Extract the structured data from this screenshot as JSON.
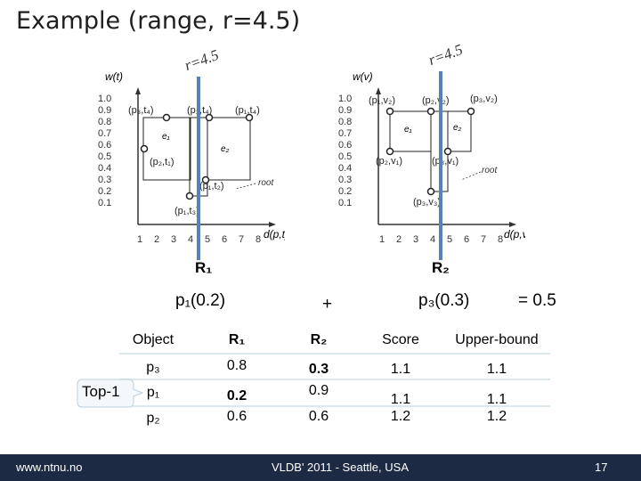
{
  "slide": {
    "title": "Example (range, r=4.5)",
    "r_label": "r=4.5",
    "plus": "+",
    "equals": "= 0.5",
    "term1": "p₁(0.2)",
    "term2": "p₃(0.3)",
    "colors": {
      "marker_line": "#5b7fb8",
      "footer": "#1d2a44",
      "row_line": "#dde8ee"
    }
  },
  "plot_left": {
    "ylabel": "w(t)",
    "xlabel": "d(p,t)",
    "region_label": "R₁",
    "yticks": [
      "1.0",
      "0.9",
      "0.8",
      "0.7",
      "0.6",
      "0.5",
      "0.4",
      "0.3",
      "0.2",
      "0.1"
    ],
    "xticks": [
      "1",
      "2",
      "3",
      "4",
      "5",
      "6",
      "7",
      "8"
    ],
    "points": [
      "(p₃,t₄)",
      "(p₂,t₄)",
      "(p₁,t₄)",
      "(p₂,t₁)",
      "(p₁,t₂)",
      "(p₁,t₃)"
    ],
    "boxes": [
      "e₁",
      "e₂"
    ],
    "root": "root"
  },
  "plot_right": {
    "ylabel": "w(v)",
    "xlabel": "d(p,v)",
    "region_label": "R₂",
    "yticks": [
      "1.0",
      "0.9",
      "0.8",
      "0.7",
      "0.6",
      "0.5",
      "0.4",
      "0.3",
      "0.2",
      "0.1"
    ],
    "xticks": [
      "1",
      "2",
      "3",
      "4",
      "5",
      "6",
      "7",
      "8"
    ],
    "points": [
      "(p₁,v₂)",
      "(p₂,v₂)",
      "(p₃,v₂)",
      "(p₂,v₁)",
      "(p₃,v₁)",
      "(p₃,v₃)"
    ],
    "boxes": [
      "e₁",
      "e₂"
    ],
    "root": "root"
  },
  "table": {
    "headers": [
      "Object",
      "R₁",
      "R₂",
      "Score",
      "Upper-bound"
    ],
    "rows": [
      {
        "object": "p₃",
        "r1": "0.8",
        "r2": "0.3",
        "score": "1.1",
        "ub": "1.1"
      },
      {
        "object": "p₁",
        "r1": "0.2",
        "r2": "0.9",
        "score": "1.1",
        "ub": "1.1"
      },
      {
        "object": "p₂",
        "r1": "0.6",
        "r2": "0.6",
        "score": "1.2",
        "ub": "1.2"
      }
    ],
    "callout": "Top-1"
  },
  "footer": {
    "left": "www.ntnu.no",
    "center": "VLDB' 2011 - Seattle, USA",
    "page": "17"
  }
}
